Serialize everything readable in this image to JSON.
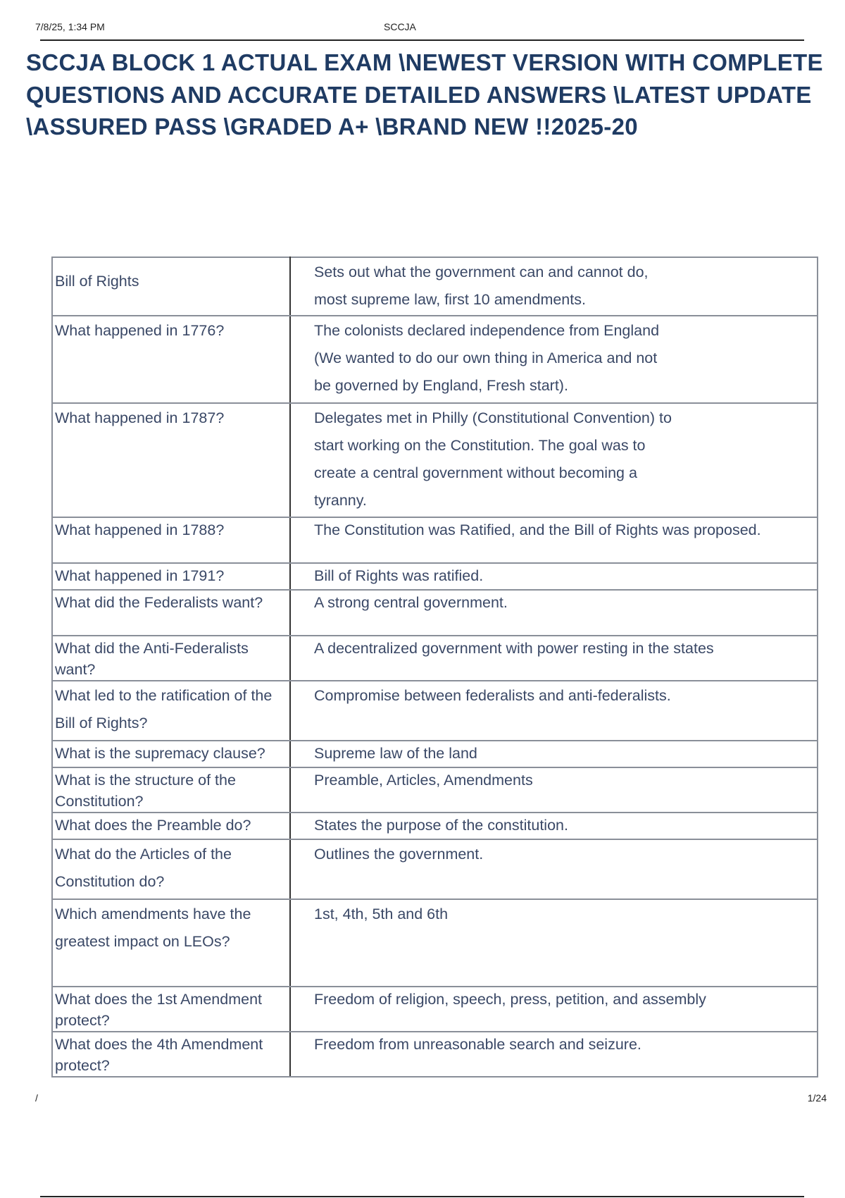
{
  "header": {
    "datetime": "7/8/25, 1:34 PM",
    "site": "SCCJA"
  },
  "title": "SCCJA BLOCK 1 ACTUAL EXAM  \\NEWEST VERSION WITH COMPLETE QUESTIONS AND ACCURATE DETAILED ANSWERS \\LATEST UPDATE \\ASSURED PASS \\GRADED A+ \\BRAND NEW !!2025-20",
  "rows": [
    {
      "q": "Bill of Rights",
      "a": "Sets out what the government can and cannot do, most supreme law, first 10 amendments."
    },
    {
      "q": "What happened in 1776?",
      "a": "The colonists declared independence from England (We wanted to do our own thing in America and not be governed by England, Fresh start)."
    },
    {
      "q": "What happened in 1787?",
      "a": "Delegates met in Philly (Constitutional Convention) to start working on the Constitution. The goal was to create a central government without becoming a tyranny."
    },
    {
      "q": "What happened in 1788?",
      "a": "The Constitution was Ratified, and the Bill of Rights was proposed."
    },
    {
      "q": "What happened in 1791?",
      "a": "Bill of Rights was ratified."
    },
    {
      "q": "What did the Federalists want?",
      "a": "A strong central government."
    },
    {
      "q": "What did the Anti-Federalists want?",
      "a": "A decentralized government with power resting in the states"
    },
    {
      "q": "What led to the ratification of the Bill of Rights?",
      "a": "Compromise between federalists and anti-federalists."
    },
    {
      "q": "What is the supremacy clause?",
      "a": "Supreme law of the land"
    },
    {
      "q": "What is the structure of the Constitution?",
      "a": "Preamble, Articles, Amendments"
    },
    {
      "q": "What does the Preamble do?",
      "a": "States the purpose of the constitution."
    },
    {
      "q": "What do the Articles of the Constitution do?",
      "a": "Outlines the government."
    },
    {
      "q": "Which amendments have the greatest impact on LEOs?",
      "a": "1st, 4th, 5th and 6th"
    },
    {
      "q": "What does the 1st Amendment protect?",
      "a": "Freedom of religion, speech, press, petition, and assembly"
    },
    {
      "q": "What does the 4th Amendment protect?",
      "a": "Freedom from unreasonable search and seizure."
    }
  ],
  "footer": {
    "left": "/",
    "page": "1/24"
  }
}
